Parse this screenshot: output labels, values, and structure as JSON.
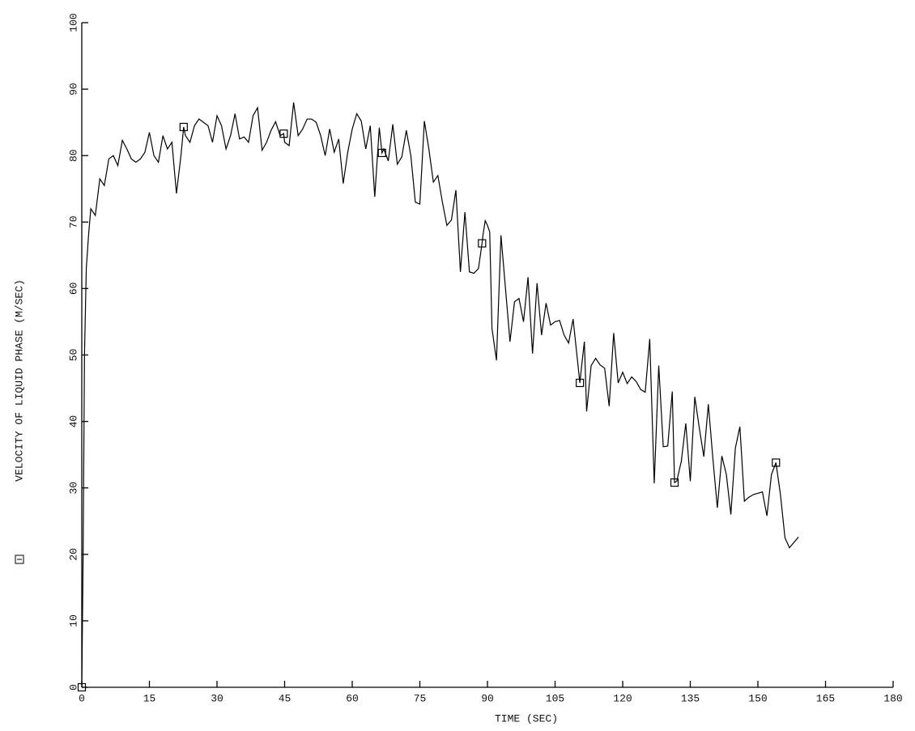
{
  "chart_data": {
    "type": "line",
    "xlabel": "TIME (SEC)",
    "ylabel": "VELOCITY OF LIQUID PHASE (M/SEC)",
    "xlim": [
      0,
      180
    ],
    "xticks": [
      0,
      15,
      30,
      45,
      60,
      75,
      90,
      105,
      120,
      135,
      150,
      165,
      180
    ],
    "ylim": [
      0,
      100
    ],
    "yticks": [
      0,
      10,
      20,
      30,
      40,
      50,
      60,
      70,
      80,
      90,
      100
    ],
    "color": "#000000",
    "series": [
      {
        "name": "VELOCITY OF LIQUID PHASE (M/SEC)",
        "color": "#000000",
        "x": [
          0,
          0.3,
          0.6,
          1,
          1.5,
          2,
          3,
          4,
          5,
          6,
          7,
          8,
          9,
          10,
          11,
          12,
          13,
          14,
          15,
          16,
          17,
          18,
          19,
          20,
          21,
          22,
          22.6,
          23,
          24,
          25,
          26,
          27,
          28,
          29,
          30,
          31,
          32,
          33,
          34,
          35,
          36,
          37,
          38,
          39,
          40,
          41,
          42,
          43,
          44,
          44.8,
          45,
          46,
          47,
          48,
          49,
          50,
          51,
          52,
          53,
          54,
          55,
          56,
          57,
          58,
          59,
          60,
          61,
          62,
          63,
          64,
          65,
          66,
          66.6,
          67,
          68,
          69,
          70,
          71,
          72,
          73,
          74,
          75,
          76,
          77,
          78,
          79,
          80,
          81,
          82,
          83,
          84,
          85,
          86,
          87,
          88,
          88.8,
          89,
          89.5,
          90,
          90.5,
          91,
          92,
          93,
          94,
          95,
          96,
          97,
          98,
          99,
          100,
          101,
          102,
          103,
          104,
          105,
          106,
          107,
          108,
          109,
          110,
          110.5,
          111,
          111.5,
          112,
          113,
          114,
          115,
          116,
          117,
          118,
          119,
          120,
          121,
          122,
          123,
          124,
          125,
          126,
          127,
          128,
          129,
          130,
          131,
          131.5,
          132,
          133,
          134,
          135,
          136,
          137,
          138,
          139,
          140,
          141,
          142,
          143,
          144,
          145,
          146,
          147,
          148,
          149,
          150,
          151,
          152,
          153,
          154,
          155,
          156,
          157,
          158,
          159
        ],
        "values": [
          0,
          20,
          50,
          63,
          68,
          72,
          71,
          76.5,
          75.5,
          79.5,
          80,
          78.5,
          82.3,
          81,
          79.5,
          79,
          79.5,
          80.5,
          83.5,
          80,
          79,
          83,
          81,
          82,
          74.3,
          80,
          84.3,
          83,
          82,
          84.5,
          85.5,
          85,
          84.5,
          82,
          86,
          84.5,
          81,
          83,
          86.3,
          82.5,
          82.8,
          82,
          86,
          87.2,
          80.8,
          82,
          83.8,
          85.1,
          83,
          83.3,
          82,
          81.5,
          88,
          83,
          84,
          85.5,
          85.5,
          85,
          83,
          80,
          84,
          80.5,
          82.5,
          75.8,
          80.5,
          84,
          86.3,
          85.2,
          81,
          84.5,
          73.8,
          84.2,
          80.4,
          81,
          79.2,
          84.7,
          78.7,
          79.8,
          83.8,
          80,
          73,
          72.7,
          85.2,
          81,
          76,
          77,
          73,
          69.5,
          70.3,
          74.8,
          62.5,
          71.5,
          62.5,
          62.3,
          63,
          66.8,
          68,
          70.2,
          69.5,
          68.5,
          54,
          49.2,
          68,
          60,
          52,
          58,
          58.5,
          55,
          61.7,
          50.2,
          60.8,
          53,
          57.8,
          54.5,
          55,
          55.2,
          53,
          51.8,
          55.4,
          49,
          45.8,
          49,
          52,
          41.5,
          48.4,
          49.5,
          48.5,
          48,
          42.3,
          53.3,
          45.8,
          47.4,
          45.7,
          46.7,
          46,
          44.8,
          44.4,
          52.4,
          30.7,
          48.4,
          36.2,
          36.3,
          44.5,
          30.8,
          31,
          34,
          39.7,
          31,
          43.7,
          39,
          34.7,
          42.6,
          34.5,
          27,
          34.8,
          32,
          26,
          36,
          39.2,
          28,
          28.6,
          29,
          29.2,
          29.4,
          25.8,
          32,
          33.8,
          29,
          22.5,
          21,
          21.8,
          22.6
        ],
        "markers": {
          "x": [
            0,
            22.6,
            44.8,
            66.6,
            88.8,
            110.5,
            131.5,
            154
          ],
          "values": [
            0,
            84.3,
            83.3,
            80.4,
            66.8,
            45.8,
            30.8,
            33.8
          ]
        }
      }
    ]
  }
}
